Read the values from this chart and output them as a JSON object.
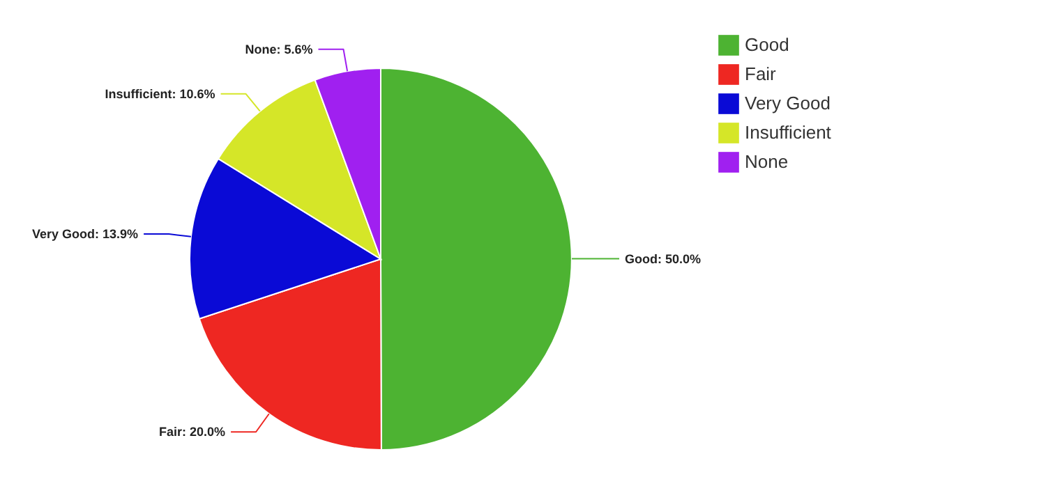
{
  "chart_data": {
    "type": "pie",
    "categories": [
      "Good",
      "Fair",
      "Very Good",
      "Insufficient",
      "None"
    ],
    "values": [
      50.0,
      20.0,
      13.9,
      10.6,
      5.6
    ],
    "value_labels": [
      "Good: 50.0%",
      "Fair: 20.0%",
      "Very Good: 13.9%",
      "Insufficient: 10.6%",
      "None: 5.6%"
    ],
    "colors": [
      "#4db332",
      "#ee2722",
      "#0a0ad6",
      "#d5e628",
      "#a020f0"
    ],
    "legend": "top right"
  }
}
